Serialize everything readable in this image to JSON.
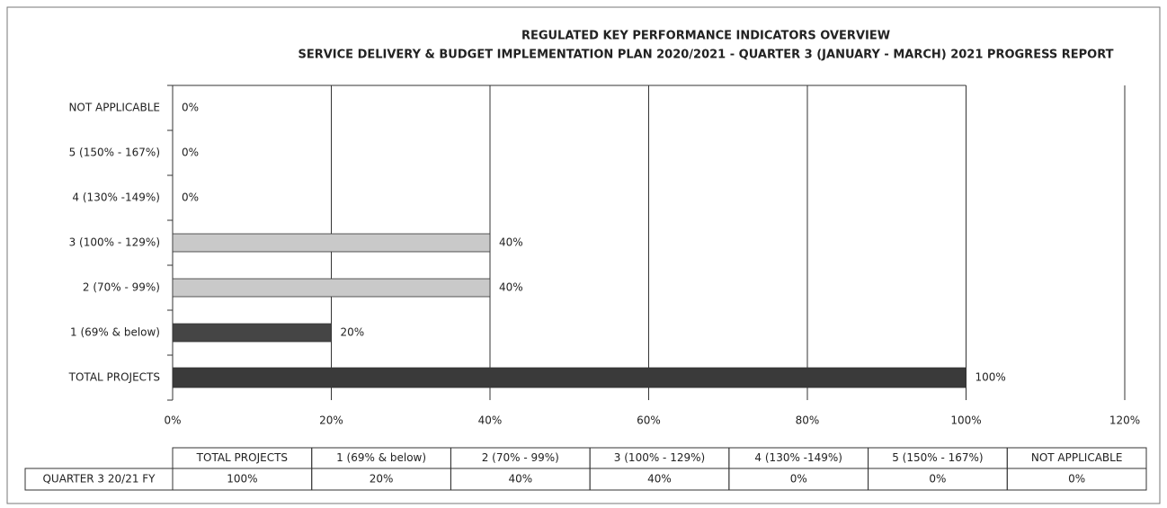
{
  "chart_data": {
    "type": "barh",
    "title": "REGULATED KEY PERFORMANCE INDICATORS OVERVIEW",
    "subtitle": "SERVICE DELIVERY & BUDGET IMPLEMENTATION PLAN 2020/2021 - QUARTER 3 (JANUARY - MARCH) 2021 PROGRESS REPORT",
    "categories": [
      "TOTAL PROJECTS",
      "1 (69% & below)",
      "2 (70% - 99%)",
      "3 (100% - 129%)",
      "4 (130% -149%)",
      "5 (150% - 167%)",
      "NOT APPLICABLE"
    ],
    "values": [
      100,
      20,
      40,
      40,
      0,
      0,
      0
    ],
    "value_labels": [
      "100%",
      "20%",
      "40%",
      "40%",
      "0%",
      "0%",
      "0%"
    ],
    "colors": [
      "#3a3a3a",
      "#454545",
      "#c9c9c9",
      "#c9c9c9",
      "#c9c9c9",
      "#c9c9c9",
      "#c9c9c9"
    ],
    "xlim": [
      0,
      120
    ],
    "xticks": [
      {
        "value": 0,
        "label": "0%"
      },
      {
        "value": 20,
        "label": "20%"
      },
      {
        "value": 40,
        "label": "40%"
      },
      {
        "value": 60,
        "label": "60%"
      },
      {
        "value": 80,
        "label": "80%"
      },
      {
        "value": 100,
        "label": "100%"
      },
      {
        "value": 120,
        "label": "120%"
      }
    ],
    "grid": true,
    "table_row_label": "QUARTER 3 20/21 FY"
  }
}
